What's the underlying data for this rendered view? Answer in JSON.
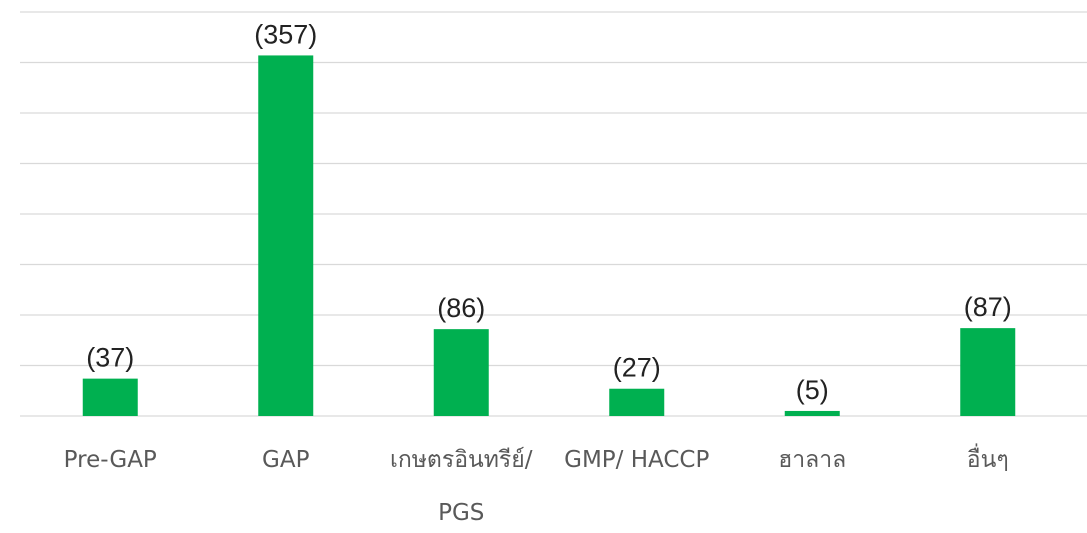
{
  "chart_data": {
    "type": "bar",
    "categories": [
      "Pre-GAP",
      "GAP",
      "เกษตรอินทรีย์/ PGS",
      "GMP/ HACCP",
      "ฮาลาล",
      "อื่นๆ"
    ],
    "values": [
      37,
      357,
      86,
      27,
      5,
      87
    ],
    "value_labels": [
      "(37)",
      "(357)",
      "(86)",
      "(27)",
      "(5)",
      "(87)"
    ],
    "color": "#00b050",
    "ylim": [
      0,
      400
    ],
    "yticks": [
      0,
      50,
      100,
      150,
      200,
      250,
      300,
      350,
      400
    ],
    "grid": true
  }
}
